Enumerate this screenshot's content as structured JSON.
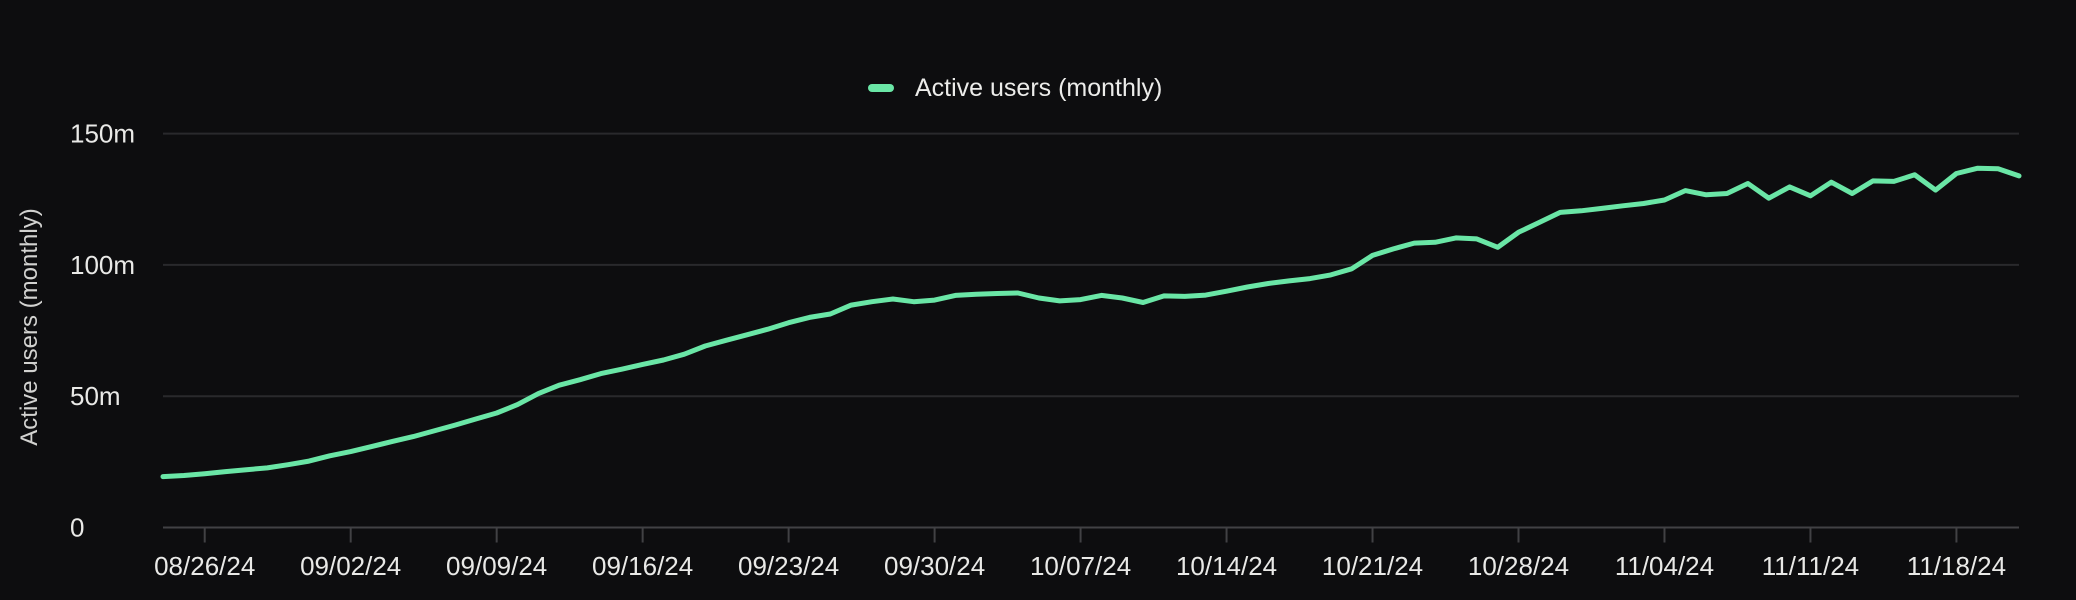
{
  "chart_data": {
    "type": "line",
    "title": "",
    "xlabel": "",
    "ylabel": "Active users (monthly)",
    "legend": {
      "label": "Active users (monthly)",
      "position": "top-center",
      "swatch_color": "#6ae6a6"
    },
    "grid": "horizontal",
    "background_color": "#0d0d0f",
    "grid_color": "#29292c",
    "axis_color": "#414144",
    "label_color": "#e9e9e7",
    "ylim": [
      0,
      150
    ],
    "y_ticks": [
      {
        "label": "150m",
        "value": 150
      },
      {
        "label": "100m",
        "value": 100
      },
      {
        "label": "50m",
        "value": 50
      },
      {
        "label": "0",
        "value": 0
      }
    ],
    "x_tick_labels": [
      "08/26/24",
      "09/02/24",
      "09/09/24",
      "09/16/24",
      "09/23/24",
      "09/30/24",
      "10/07/24",
      "10/14/24",
      "10/21/24",
      "10/28/24",
      "11/04/24",
      "11/11/24",
      "11/18/24"
    ],
    "x": [
      "08/24/24",
      "08/25/24",
      "08/26/24",
      "08/27/24",
      "08/28/24",
      "08/29/24",
      "08/30/24",
      "08/31/24",
      "09/01/24",
      "09/02/24",
      "09/03/24",
      "09/04/24",
      "09/05/24",
      "09/06/24",
      "09/07/24",
      "09/08/24",
      "09/09/24",
      "09/10/24",
      "09/11/24",
      "09/12/24",
      "09/13/24",
      "09/14/24",
      "09/15/24",
      "09/16/24",
      "09/17/24",
      "09/18/24",
      "09/19/24",
      "09/20/24",
      "09/21/24",
      "09/22/24",
      "09/23/24",
      "09/24/24",
      "09/25/24",
      "09/26/24",
      "09/27/24",
      "09/28/24",
      "09/29/24",
      "09/30/24",
      "10/01/24",
      "10/02/24",
      "10/03/24",
      "10/04/24",
      "10/05/24",
      "10/06/24",
      "10/07/24",
      "10/08/24",
      "10/09/24",
      "10/10/24",
      "10/11/24",
      "10/12/24",
      "10/13/24",
      "10/14/24",
      "10/15/24",
      "10/16/24",
      "10/17/24",
      "10/18/24",
      "10/19/24",
      "10/20/24",
      "10/21/24",
      "10/22/24",
      "10/23/24",
      "10/24/24",
      "10/25/24",
      "10/26/24",
      "10/27/24",
      "10/28/24",
      "10/29/24",
      "10/30/24",
      "10/31/24",
      "11/01/24",
      "11/02/24",
      "11/03/24",
      "11/04/24",
      "11/05/24",
      "11/06/24",
      "11/07/24",
      "11/08/24",
      "11/09/24",
      "11/10/24",
      "11/11/24",
      "11/12/24",
      "11/13/24",
      "11/14/24",
      "11/15/24",
      "11/16/24",
      "11/17/24",
      "11/18/24",
      "11/19/24",
      "11/20/24",
      "11/21/24"
    ],
    "series": [
      {
        "name": "Active users (monthly)",
        "color": "#6ae6a6",
        "unit": "millions",
        "values": [
          19.4,
          19.8,
          20.5,
          21.3,
          22,
          22.7,
          23.9,
          25.3,
          27.3,
          28.9,
          30.8,
          32.8,
          34.6,
          36.8,
          39,
          41.3,
          43.6,
          46.8,
          51,
          54.2,
          56.3,
          58.6,
          60.3,
          62.1,
          63.8,
          66,
          69.1,
          71.3,
          73.4,
          75.5,
          78,
          80,
          81.3,
          84.7,
          86,
          87,
          86,
          86.6,
          88.4,
          88.8,
          89.1,
          89.3,
          87.4,
          86.3,
          86.8,
          88.4,
          87.4,
          85.7,
          88.2,
          88,
          88.5,
          90,
          91.6,
          92.9,
          93.9,
          94.8,
          96.2,
          98.5,
          103.6,
          106.1,
          108.3,
          108.6,
          110.3,
          109.9,
          106.7,
          112.4,
          116.2,
          120,
          120.6,
          121.5,
          122.5,
          123.4,
          124.7,
          128.3,
          126.7,
          127.2,
          131,
          125.4,
          129.7,
          126.3,
          131.5,
          127.2,
          132,
          131.8,
          134.3,
          128.5,
          134.8,
          136.8,
          136.6,
          133.9
        ]
      }
    ]
  }
}
